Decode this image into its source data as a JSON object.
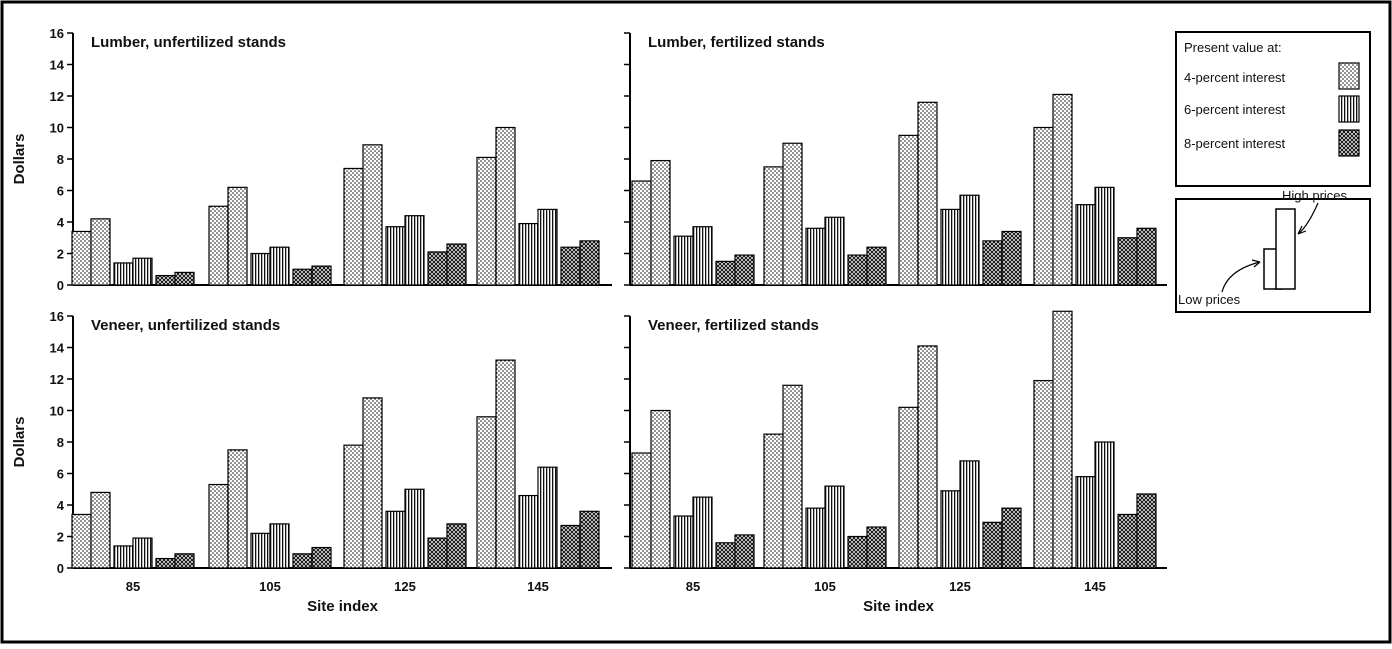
{
  "chart_data": {
    "type": "bar",
    "layout": "2x2 panels",
    "ylim": [
      0,
      16
    ],
    "y_ticks": [
      "0",
      "2",
      "4",
      "6",
      "8",
      "10",
      "12",
      "14",
      "16"
    ],
    "ylabel": "Dollars",
    "xlabel": "Site index",
    "categories": [
      "85",
      "105",
      "125",
      "145"
    ],
    "legend": {
      "title": "Present value at:",
      "series": [
        {
          "name": "4-percent interest",
          "pattern": "dots"
        },
        {
          "name": "6-percent interest",
          "pattern": "vertical-lines"
        },
        {
          "name": "8-percent interest",
          "pattern": "crosshatch"
        }
      ],
      "price_key": {
        "low": "Low prices",
        "high": "High prices"
      }
    },
    "panels": [
      {
        "title": "Lumber, unfertilized stands",
        "values": {
          "4-percent interest": {
            "low": [
              3.4,
              5.0,
              7.4,
              8.1
            ],
            "high": [
              4.2,
              6.2,
              8.9,
              10.0
            ]
          },
          "6-percent interest": {
            "low": [
              1.4,
              2.0,
              3.7,
              3.9
            ],
            "high": [
              1.7,
              2.4,
              4.4,
              4.8
            ]
          },
          "8-percent interest": {
            "low": [
              0.6,
              1.0,
              2.1,
              2.4
            ],
            "high": [
              0.8,
              1.2,
              2.6,
              2.8
            ]
          }
        }
      },
      {
        "title": "Lumber, fertilized stands",
        "values": {
          "4-percent interest": {
            "low": [
              6.6,
              7.5,
              9.5,
              10.0
            ],
            "high": [
              7.9,
              9.0,
              11.6,
              12.1
            ]
          },
          "6-percent interest": {
            "low": [
              3.1,
              3.6,
              4.8,
              5.1
            ],
            "high": [
              3.7,
              4.3,
              5.7,
              6.2
            ]
          },
          "8-percent interest": {
            "low": [
              1.5,
              1.9,
              2.8,
              3.0
            ],
            "high": [
              1.9,
              2.4,
              3.4,
              3.6
            ]
          }
        }
      },
      {
        "title": "Veneer, unfertilized stands",
        "values": {
          "4-percent interest": {
            "low": [
              3.4,
              5.3,
              7.8,
              9.6
            ],
            "high": [
              4.8,
              7.5,
              10.8,
              13.2
            ]
          },
          "6-percent interest": {
            "low": [
              1.4,
              2.2,
              3.6,
              4.6
            ],
            "high": [
              1.9,
              2.8,
              5.0,
              6.4
            ]
          },
          "8-percent interest": {
            "low": [
              0.6,
              0.9,
              1.9,
              2.7
            ],
            "high": [
              0.9,
              1.3,
              2.8,
              3.6
            ]
          }
        }
      },
      {
        "title": "Veneer, fertilized stands",
        "values": {
          "4-percent interest": {
            "low": [
              7.3,
              8.5,
              10.2,
              11.9
            ],
            "high": [
              10.0,
              11.6,
              14.1,
              16.3
            ]
          },
          "6-percent interest": {
            "low": [
              3.3,
              3.8,
              4.9,
              5.8
            ],
            "high": [
              4.5,
              5.2,
              6.8,
              8.0
            ]
          },
          "8-percent interest": {
            "low": [
              1.6,
              2.0,
              2.9,
              3.4
            ],
            "high": [
              2.1,
              2.6,
              3.8,
              4.7
            ]
          }
        }
      }
    ]
  }
}
